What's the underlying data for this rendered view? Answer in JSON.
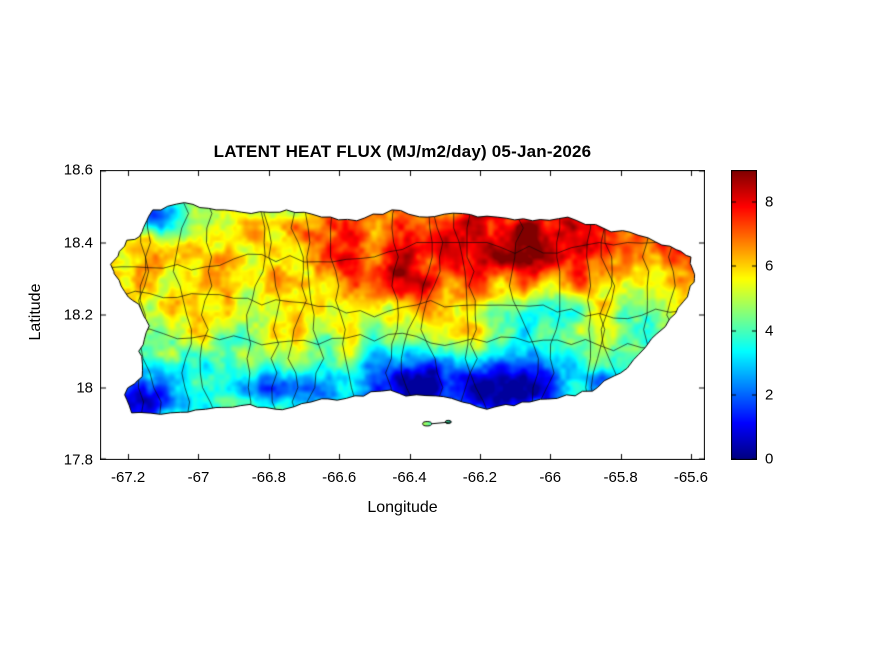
{
  "chart_data": {
    "type": "heatmap",
    "title": "LATENT HEAT FLUX (MJ/m2/day) 05-Jan-2026",
    "variable": "Latent heat flux",
    "units": "MJ/m2/day",
    "date": "05-Jan-2026",
    "region": "Puerto Rico with municipality boundary overlay",
    "xlabel": "Longitude",
    "ylabel": "Latitude",
    "xlim": [
      -67.28,
      -65.56
    ],
    "ylim": [
      17.8,
      18.6
    ],
    "x_tick_labels": [
      "-67.2",
      "-67",
      "-66.8",
      "-66.6",
      "-66.4",
      "-66.2",
      "-66",
      "-65.8",
      "-65.6"
    ],
    "y_tick_labels": [
      "17.8",
      "18",
      "18.2",
      "18.4",
      "18.6"
    ],
    "colormap": "jet",
    "color_range": [
      0,
      9
    ],
    "colorbar_tick_labels": [
      "0",
      "2",
      "4",
      "6",
      "8"
    ],
    "legend_position": "right-colorbar",
    "grid": false,
    "values_grid": {
      "lon": [
        -67.2,
        -67.1,
        -67.0,
        -66.9,
        -66.8,
        -66.7,
        -66.6,
        -66.5,
        -66.4,
        -66.3,
        -66.2,
        -66.1,
        -66.0,
        -65.9,
        -65.8,
        -65.7,
        -65.6
      ],
      "lat": [
        18.45,
        18.35,
        18.25,
        18.15,
        18.05,
        17.95
      ],
      "flux": [
        [
          null,
          2,
          5,
          5.5,
          5,
          5.5,
          6,
          5.5,
          7,
          7.5,
          8,
          8,
          7.5,
          7,
          7.5,
          6,
          null
        ],
        [
          3.5,
          5,
          6,
          5.5,
          6,
          5,
          5.5,
          6,
          6.5,
          7,
          7.5,
          7,
          7.5,
          7,
          6.5,
          5.5,
          4
        ],
        [
          4.5,
          5.5,
          6.5,
          6,
          5.5,
          5,
          6,
          6.5,
          6,
          5.5,
          5,
          5.5,
          5,
          4.5,
          5,
          4.5,
          4
        ],
        [
          4,
          5,
          5.5,
          5,
          4.5,
          5,
          5.5,
          5,
          4.5,
          4,
          3.5,
          4,
          4.5,
          4,
          3.5,
          4,
          null
        ],
        [
          3.5,
          4.5,
          5,
          4.5,
          4,
          4.5,
          4,
          3.5,
          3,
          2.5,
          3,
          3.5,
          3,
          3.5,
          4,
          null,
          null
        ],
        [
          2,
          3,
          3.5,
          3,
          3.5,
          3,
          2.5,
          2,
          1.5,
          1,
          1.5,
          2,
          2.5,
          null,
          null,
          null,
          null
        ]
      ]
    },
    "pattern_summary": "Highest flux (7-9) along the north/northeast coast; moderate (4-6) across the interior; low (1-3) along the south coast with deep-blue pockets near 66.4W-66.1W, and a low patch at the northwest tip."
  }
}
